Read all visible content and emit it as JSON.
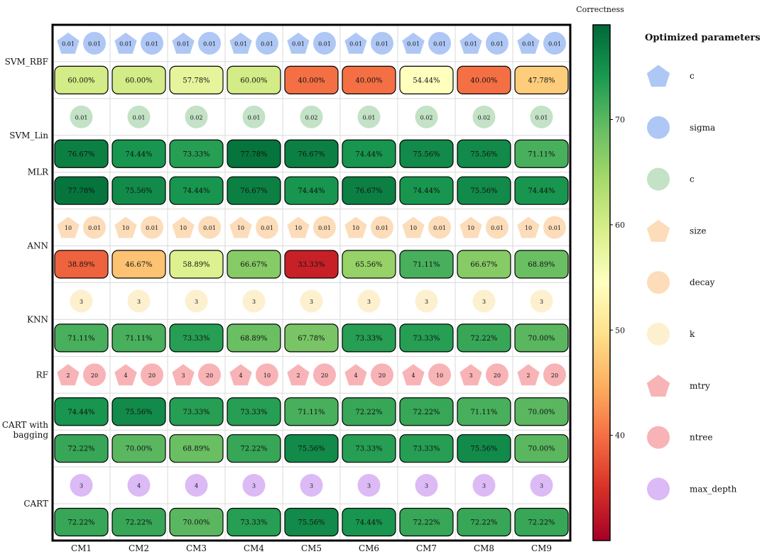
{
  "chart_data": {
    "type": "heatmap",
    "columns": [
      "CM1",
      "CM2",
      "CM3",
      "CM4",
      "CM5",
      "CM6",
      "CM7",
      "CM8",
      "CM9"
    ],
    "row_labels": [
      {
        "label": "SVM_RBF",
        "span": [
          0,
          1
        ]
      },
      {
        "label": "SVM_Lin",
        "span": [
          2,
          3
        ]
      },
      {
        "label": "MLR",
        "span": [
          3,
          4
        ]
      },
      {
        "label": "ANN",
        "span": [
          5,
          6
        ]
      },
      {
        "label": "KNN",
        "span": [
          7,
          8
        ]
      },
      {
        "label": "RF",
        "span": [
          9,
          9
        ]
      },
      {
        "label": "CART with\nbagging",
        "span": [
          10,
          11
        ]
      },
      {
        "label": "CART",
        "span": [
          12,
          13
        ]
      }
    ],
    "rows": [
      {
        "kind": "params",
        "params": [
          {
            "shape": "pentagon",
            "color": "#aec7f5",
            "values": [
              "0.01",
              "0.01",
              "0.01",
              "0.01",
              "0.01",
              "0.01",
              "0.01",
              "0.01",
              "0.01"
            ]
          },
          {
            "shape": "circle",
            "color": "#aec7f5",
            "values": [
              "0.01",
              "0.01",
              "0.01",
              "0.01",
              "0.01",
              "0.01",
              "0.01",
              "0.01",
              "0.01"
            ]
          }
        ]
      },
      {
        "kind": "correctness",
        "values": [
          60.0,
          60.0,
          57.78,
          60.0,
          40.0,
          40.0,
          54.44,
          40.0,
          47.78
        ],
        "labels": [
          "60.00%",
          "60.00%",
          "57.78%",
          "60.00%",
          "40.00%",
          "40.00%",
          "54.44%",
          "40.00%",
          "47.78%"
        ]
      },
      {
        "kind": "params",
        "params": [
          {
            "shape": "circle",
            "color": "#c3e2c6",
            "values": [
              "0.01",
              "0.01",
              "0.02",
              "0.01",
              "0.02",
              "0.01",
              "0.02",
              "0.02",
              "0.01"
            ]
          }
        ]
      },
      {
        "kind": "correctness",
        "values": [
          76.67,
          74.44,
          73.33,
          77.78,
          76.67,
          74.44,
          75.56,
          75.56,
          71.11
        ],
        "labels": [
          "76.67%",
          "74.44%",
          "73.33%",
          "77.78%",
          "76.67%",
          "74.44%",
          "75.56%",
          "75.56%",
          "71.11%"
        ]
      },
      {
        "kind": "correctness",
        "values": [
          77.78,
          75.56,
          74.44,
          76.67,
          74.44,
          76.67,
          74.44,
          75.56,
          74.44
        ],
        "labels": [
          "77.78%",
          "75.56%",
          "74.44%",
          "76.67%",
          "74.44%",
          "76.67%",
          "74.44%",
          "75.56%",
          "74.44%"
        ]
      },
      {
        "kind": "params",
        "params": [
          {
            "shape": "pentagon",
            "color": "#fcdcb9",
            "values": [
              "10",
              "10",
              "10",
              "10",
              "10",
              "10",
              "10",
              "10",
              "10"
            ]
          },
          {
            "shape": "circle",
            "color": "#fcdcb9",
            "values": [
              "0.01",
              "0.01",
              "0.01",
              "0.01",
              "0.01",
              "0.01",
              "0.01",
              "0.01",
              "0.01"
            ]
          }
        ]
      },
      {
        "kind": "correctness",
        "values": [
          38.89,
          46.67,
          58.89,
          66.67,
          33.33,
          65.56,
          71.11,
          66.67,
          68.89
        ],
        "labels": [
          "38.89%",
          "46.67%",
          "58.89%",
          "66.67%",
          "33.33%",
          "65.56%",
          "71.11%",
          "66.67%",
          "68.89%"
        ]
      },
      {
        "kind": "params",
        "params": [
          {
            "shape": "circle",
            "color": "#fdf0cf",
            "values": [
              "3",
              "3",
              "3",
              "3",
              "3",
              "3",
              "3",
              "3",
              "3"
            ]
          }
        ]
      },
      {
        "kind": "correctness",
        "values": [
          71.11,
          71.11,
          73.33,
          68.89,
          67.78,
          73.33,
          73.33,
          72.22,
          70.0
        ],
        "labels": [
          "71.11%",
          "71.11%",
          "73.33%",
          "68.89%",
          "67.78%",
          "73.33%",
          "73.33%",
          "72.22%",
          "70.00%"
        ]
      },
      {
        "kind": "params",
        "params": [
          {
            "shape": "pentagon",
            "color": "#f8b3b6",
            "values": [
              "2",
              "4",
              "3",
              "4",
              "2",
              "4",
              "4",
              "3",
              "2"
            ]
          },
          {
            "shape": "circle",
            "color": "#f8b3b6",
            "values": [
              "20",
              "20",
              "20",
              "10",
              "20",
              "20",
              "10",
              "20",
              "20"
            ]
          }
        ]
      },
      {
        "kind": "correctness",
        "values": [
          74.44,
          75.56,
          73.33,
          73.33,
          71.11,
          72.22,
          72.22,
          71.11,
          70.0
        ],
        "labels": [
          "74.44%",
          "75.56%",
          "73.33%",
          "73.33%",
          "71.11%",
          "72.22%",
          "72.22%",
          "71.11%",
          "70.00%"
        ]
      },
      {
        "kind": "correctness",
        "values": [
          72.22,
          70.0,
          68.89,
          72.22,
          75.56,
          73.33,
          73.33,
          75.56,
          70.0
        ],
        "labels": [
          "72.22%",
          "70.00%",
          "68.89%",
          "72.22%",
          "75.56%",
          "73.33%",
          "73.33%",
          "75.56%",
          "70.00%"
        ]
      },
      {
        "kind": "params",
        "params": [
          {
            "shape": "circle",
            "color": "#dcbaf5",
            "values": [
              "3",
              "4",
              "4",
              "3",
              "3",
              "3",
              "3",
              "3",
              "3"
            ]
          }
        ]
      },
      {
        "kind": "correctness",
        "values": [
          72.22,
          72.22,
          70.0,
          73.33,
          75.56,
          74.44,
          72.22,
          72.22,
          72.22
        ],
        "labels": [
          "72.22%",
          "72.22%",
          "70.00%",
          "73.33%",
          "75.56%",
          "74.44%",
          "72.22%",
          "72.22%",
          "72.22%"
        ]
      }
    ],
    "colorbar": {
      "title": "Correctness",
      "range": [
        30,
        79
      ],
      "ticks": [
        40,
        50,
        60,
        70
      ],
      "colormap": "RdYlGn"
    },
    "legend": {
      "title": "Optimized parameters",
      "placement": "right",
      "items": [
        {
          "shape": "pentagon",
          "color": "#aec7f5",
          "label": "c"
        },
        {
          "shape": "circle",
          "color": "#aec7f5",
          "label": "sigma"
        },
        {
          "shape": "circle",
          "color": "#c3e2c6",
          "label": "c"
        },
        {
          "shape": "pentagon",
          "color": "#fcdcb9",
          "label": "size"
        },
        {
          "shape": "circle",
          "color": "#fcdcb9",
          "label": "decay"
        },
        {
          "shape": "circle",
          "color": "#fdf0cf",
          "label": "k"
        },
        {
          "shape": "pentagon",
          "color": "#f8b3b6",
          "label": "mtry"
        },
        {
          "shape": "circle",
          "color": "#f8b3b6",
          "label": "ntree"
        },
        {
          "shape": "circle",
          "color": "#dcbaf5",
          "label": "max_depth"
        }
      ]
    }
  }
}
